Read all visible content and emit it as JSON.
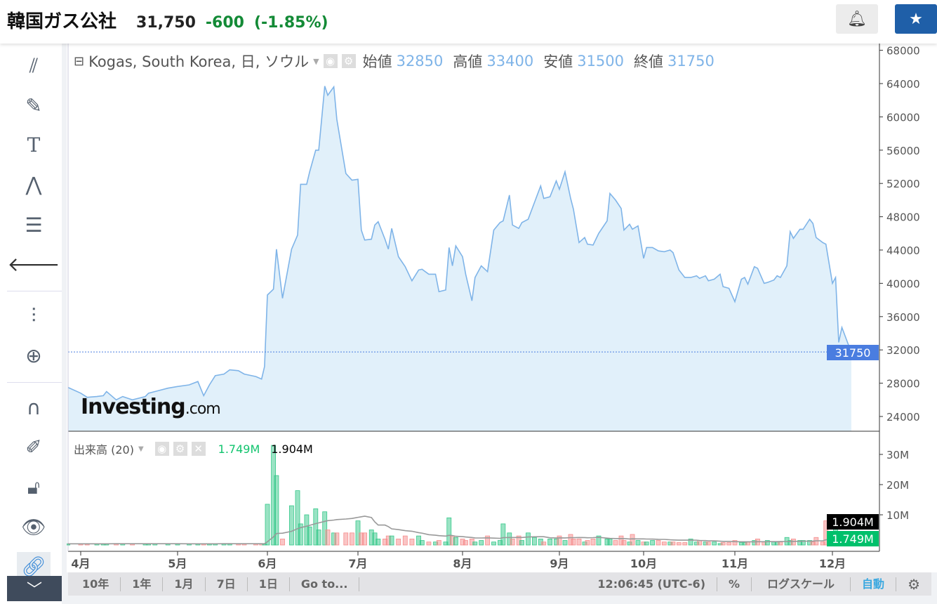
{
  "header": {
    "title": "韓国ガス公社",
    "price": "31,750",
    "change": "-600",
    "change_pct": "(-1.85%)",
    "bell_icon": "bell-plus-icon",
    "star_icon": "star-icon"
  },
  "toolbar": [
    "trend-lines-icon",
    "brush-icon",
    "text-icon",
    "pattern-icon",
    "fib-icon",
    "back-arrow-icon",
    "candles-icon",
    "zoom-in-icon",
    "magnet-icon",
    "lock-pencil-icon",
    "unlock-icon",
    "eye-icon",
    "link-icon"
  ],
  "legend": {
    "symbol": "Kogas, South Korea, 日, ソウル",
    "open_label": "始値",
    "open": "32850",
    "high_label": "高値",
    "high": "33400",
    "low_label": "安値",
    "low": "31500",
    "close_label": "終値",
    "close": "31750"
  },
  "volume_legend": {
    "label": "出来高 (20)",
    "volume": "1.749M",
    "ma": "1.904M"
  },
  "colors": {
    "line": "#7fb4e8",
    "area": "#e1f0fa",
    "up": "#36c88a",
    "down": "#f58c8c",
    "ma": "#999999",
    "last_tag": "#4a7de0",
    "volume_tag": "#00c06b"
  },
  "chart_data": {
    "type": "area",
    "price_axis": [
      "68000",
      "64000",
      "60000",
      "56000",
      "52000",
      "48000",
      "44000",
      "40000",
      "36000",
      "32000",
      "28000",
      "24000"
    ],
    "volume_axis": [
      "30M",
      "20M",
      "10M"
    ],
    "x_ticks": [
      "4月",
      "5月",
      "6月",
      "7月",
      "8月",
      "9月",
      "10月",
      "11月",
      "12月"
    ],
    "last_price": "31750",
    "last_volume": "1.749M",
    "last_ma": "1.904M",
    "watermark": "Investing.com",
    "series": [
      {
        "d": "03-27",
        "c": 27500,
        "v": 0.4
      },
      {
        "d": "04-01",
        "c": 26800,
        "v": 0.4
      },
      {
        "d": "04-03",
        "c": 26300,
        "v": 0.4
      },
      {
        "d": "04-06",
        "c": 26400,
        "v": 0.4
      },
      {
        "d": "04-08",
        "c": 26500,
        "v": 0.4
      },
      {
        "d": "04-09",
        "c": 27000,
        "v": 0.4
      },
      {
        "d": "04-12",
        "c": 26000,
        "v": 0.5
      },
      {
        "d": "04-14",
        "c": 26400,
        "v": 0.4
      },
      {
        "d": "04-17",
        "c": 26000,
        "v": 0.4
      },
      {
        "d": "04-21",
        "c": 26400,
        "v": 0.4
      },
      {
        "d": "04-22",
        "c": 26800,
        "v": 0.4
      },
      {
        "d": "04-24",
        "c": 27000,
        "v": 0.4
      },
      {
        "d": "04-28",
        "c": 27400,
        "v": 0.4
      },
      {
        "d": "05-01",
        "c": 27600,
        "v": 0.4
      },
      {
        "d": "05-05",
        "c": 27800,
        "v": 0.4
      },
      {
        "d": "05-08",
        "c": 28200,
        "v": 0.4
      },
      {
        "d": "05-10",
        "c": 26500,
        "v": 0.4
      },
      {
        "d": "05-12",
        "c": 27800,
        "v": 0.4
      },
      {
        "d": "05-14",
        "c": 28900,
        "v": 0.4
      },
      {
        "d": "05-17",
        "c": 29100,
        "v": 0.5
      },
      {
        "d": "05-19",
        "c": 29600,
        "v": 0.5
      },
      {
        "d": "05-22",
        "c": 29500,
        "v": 0.4
      },
      {
        "d": "05-24",
        "c": 29100,
        "v": 0.4
      },
      {
        "d": "05-28",
        "c": 28800,
        "v": 0.4
      },
      {
        "d": "05-30",
        "c": 28500,
        "v": 0.4
      },
      {
        "d": "05-31",
        "c": 30000,
        "v": 0.4
      },
      {
        "d": "06-01",
        "c": 38600,
        "v": 13.5
      },
      {
        "d": "06-03",
        "c": 39300,
        "v": 33
      },
      {
        "d": "06-04",
        "c": 44100,
        "v": 23
      },
      {
        "d": "06-06",
        "c": 38200,
        "v": 2
      },
      {
        "d": "06-09",
        "c": 44100,
        "v": 13
      },
      {
        "d": "06-11",
        "c": 45800,
        "v": 18
      },
      {
        "d": "06-12",
        "c": 51900,
        "v": 7
      },
      {
        "d": "06-14",
        "c": 51900,
        "v": 10
      },
      {
        "d": "06-15",
        "c": 53400,
        "v": 6
      },
      {
        "d": "06-17",
        "c": 56000,
        "v": 12
      },
      {
        "d": "06-18",
        "c": 56000,
        "v": 5
      },
      {
        "d": "06-20",
        "c": 63700,
        "v": 11
      },
      {
        "d": "06-21",
        "c": 62600,
        "v": 5
      },
      {
        "d": "06-23",
        "c": 63600,
        "v": 4
      },
      {
        "d": "06-24",
        "c": 59700,
        "v": 4
      },
      {
        "d": "06-27",
        "c": 53200,
        "v": 4
      },
      {
        "d": "06-29",
        "c": 52400,
        "v": 4
      },
      {
        "d": "07-01",
        "c": 52500,
        "v": 8
      },
      {
        "d": "07-02",
        "c": 46400,
        "v": 4
      },
      {
        "d": "07-03",
        "c": 45200,
        "v": 4
      },
      {
        "d": "07-05",
        "c": 45300,
        "v": 5
      },
      {
        "d": "07-06",
        "c": 47000,
        "v": 4
      },
      {
        "d": "07-07",
        "c": 47400,
        "v": 2
      },
      {
        "d": "07-09",
        "c": 45300,
        "v": 2
      },
      {
        "d": "07-10",
        "c": 44100,
        "v": 3
      },
      {
        "d": "07-11",
        "c": 46600,
        "v": 3
      },
      {
        "d": "07-13",
        "c": 43200,
        "v": 2
      },
      {
        "d": "07-15",
        "c": 42000,
        "v": 3
      },
      {
        "d": "07-17",
        "c": 40300,
        "v": 2
      },
      {
        "d": "07-19",
        "c": 41600,
        "v": 3
      },
      {
        "d": "07-20",
        "c": 41700,
        "v": 1.5
      },
      {
        "d": "07-22",
        "c": 41100,
        "v": 1
      },
      {
        "d": "07-24",
        "c": 41100,
        "v": 1
      },
      {
        "d": "07-25",
        "c": 39000,
        "v": 1.5
      },
      {
        "d": "07-27",
        "c": 39200,
        "v": 1
      },
      {
        "d": "07-28",
        "c": 44300,
        "v": 9
      },
      {
        "d": "07-29",
        "c": 42100,
        "v": 3
      },
      {
        "d": "07-30",
        "c": 44500,
        "v": 2.5
      },
      {
        "d": "08-01",
        "c": 43200,
        "v": 2
      },
      {
        "d": "08-02",
        "c": 41100,
        "v": 1.5
      },
      {
        "d": "08-04",
        "c": 37900,
        "v": 2
      },
      {
        "d": "08-05",
        "c": 40700,
        "v": 1
      },
      {
        "d": "08-07",
        "c": 42100,
        "v": 1.5
      },
      {
        "d": "08-09",
        "c": 41400,
        "v": 3
      },
      {
        "d": "08-11",
        "c": 46400,
        "v": 1
      },
      {
        "d": "08-13",
        "c": 47300,
        "v": 1.5
      },
      {
        "d": "08-14",
        "c": 47500,
        "v": 7
      },
      {
        "d": "08-16",
        "c": 50600,
        "v": 4
      },
      {
        "d": "08-17",
        "c": 47000,
        "v": 2
      },
      {
        "d": "08-19",
        "c": 46600,
        "v": 3
      },
      {
        "d": "08-20",
        "c": 47300,
        "v": 1.5
      },
      {
        "d": "08-22",
        "c": 47700,
        "v": 4
      },
      {
        "d": "08-24",
        "c": 49700,
        "v": 2.5
      },
      {
        "d": "08-26",
        "c": 51700,
        "v": 2
      },
      {
        "d": "08-27",
        "c": 50200,
        "v": 1
      },
      {
        "d": "08-29",
        "c": 50400,
        "v": 2
      },
      {
        "d": "08-31",
        "c": 52300,
        "v": 2
      },
      {
        "d": "09-01",
        "c": 51300,
        "v": 3
      },
      {
        "d": "09-03",
        "c": 53400,
        "v": 1.5
      },
      {
        "d": "09-05",
        "c": 50200,
        "v": 3.5
      },
      {
        "d": "09-06",
        "c": 48900,
        "v": 2
      },
      {
        "d": "09-08",
        "c": 44900,
        "v": 2
      },
      {
        "d": "09-10",
        "c": 45500,
        "v": 1
      },
      {
        "d": "09-11",
        "c": 44700,
        "v": 1.5
      },
      {
        "d": "09-13",
        "c": 44600,
        "v": 2
      },
      {
        "d": "09-15",
        "c": 46000,
        "v": 3
      },
      {
        "d": "09-18",
        "c": 47500,
        "v": 2
      },
      {
        "d": "09-19",
        "c": 50800,
        "v": 2
      },
      {
        "d": "09-21",
        "c": 50000,
        "v": 1.5
      },
      {
        "d": "09-23",
        "c": 49000,
        "v": 3
      },
      {
        "d": "09-24",
        "c": 46400,
        "v": 1.5
      },
      {
        "d": "09-26",
        "c": 47100,
        "v": 1
      },
      {
        "d": "09-27",
        "c": 46500,
        "v": 3.5
      },
      {
        "d": "09-29",
        "c": 46900,
        "v": 1.5
      },
      {
        "d": "10-01",
        "c": 43000,
        "v": 1
      },
      {
        "d": "10-02",
        "c": 44300,
        "v": 1
      },
      {
        "d": "10-04",
        "c": 44300,
        "v": 1.5
      },
      {
        "d": "10-06",
        "c": 43900,
        "v": 1.5
      },
      {
        "d": "10-08",
        "c": 43800,
        "v": 1
      },
      {
        "d": "10-10",
        "c": 44000,
        "v": 1
      },
      {
        "d": "10-11",
        "c": 43700,
        "v": 1
      },
      {
        "d": "10-13",
        "c": 41600,
        "v": 0.8
      },
      {
        "d": "10-15",
        "c": 40700,
        "v": 0.8
      },
      {
        "d": "10-17",
        "c": 40700,
        "v": 2
      },
      {
        "d": "10-19",
        "c": 40900,
        "v": 1
      },
      {
        "d": "10-20",
        "c": 40600,
        "v": 1.5
      },
      {
        "d": "10-22",
        "c": 40900,
        "v": 1
      },
      {
        "d": "10-23",
        "c": 40300,
        "v": 1
      },
      {
        "d": "10-25",
        "c": 40500,
        "v": 1
      },
      {
        "d": "10-27",
        "c": 41100,
        "v": 0.5
      },
      {
        "d": "10-28",
        "c": 39600,
        "v": 0.8
      },
      {
        "d": "10-30",
        "c": 39400,
        "v": 0.8
      },
      {
        "d": "11-01",
        "c": 37800,
        "v": 1.5
      },
      {
        "d": "11-03",
        "c": 40500,
        "v": 0.8
      },
      {
        "d": "11-04",
        "c": 40700,
        "v": 0.8
      },
      {
        "d": "11-05",
        "c": 39900,
        "v": 1
      },
      {
        "d": "11-07",
        "c": 42000,
        "v": 1.5
      },
      {
        "d": "11-08",
        "c": 41800,
        "v": 2
      },
      {
        "d": "11-10",
        "c": 40000,
        "v": 1
      },
      {
        "d": "11-11",
        "c": 40100,
        "v": 1.5
      },
      {
        "d": "11-13",
        "c": 40400,
        "v": 1
      },
      {
        "d": "11-14",
        "c": 40900,
        "v": 1
      },
      {
        "d": "11-15",
        "c": 40700,
        "v": 1
      },
      {
        "d": "11-17",
        "c": 42100,
        "v": 2.5
      },
      {
        "d": "11-18",
        "c": 46200,
        "v": 1.5
      },
      {
        "d": "11-19",
        "c": 45400,
        "v": 2
      },
      {
        "d": "11-21",
        "c": 46500,
        "v": 1.5
      },
      {
        "d": "11-22",
        "c": 46500,
        "v": 1.5
      },
      {
        "d": "11-24",
        "c": 47700,
        "v": 1.5
      },
      {
        "d": "11-25",
        "c": 47200,
        "v": 1
      },
      {
        "d": "11-26",
        "c": 45500,
        "v": 2.5
      },
      {
        "d": "11-28",
        "c": 44900,
        "v": 1
      },
      {
        "d": "11-29",
        "c": 44700,
        "v": 8
      },
      {
        "d": "12-01",
        "c": 40000,
        "v": 2.5
      },
      {
        "d": "12-02",
        "c": 40700,
        "v": 7
      },
      {
        "d": "12-03",
        "c": 32900,
        "v": 3
      },
      {
        "d": "12-04",
        "c": 34700,
        "v": 4
      },
      {
        "d": "12-06",
        "c": 32700,
        "v": 2
      },
      {
        "d": "12-07",
        "c": 31750,
        "v": 1.75
      }
    ]
  },
  "bottom_bar": {
    "ranges": [
      "10年",
      "1年",
      "1月",
      "7日",
      "1日",
      "Go to..."
    ],
    "time": "12:06:45 (UTC-6)",
    "percent": "%",
    "log": "ログスケール",
    "auto": "自動",
    "gear_icon": "gear-icon"
  }
}
